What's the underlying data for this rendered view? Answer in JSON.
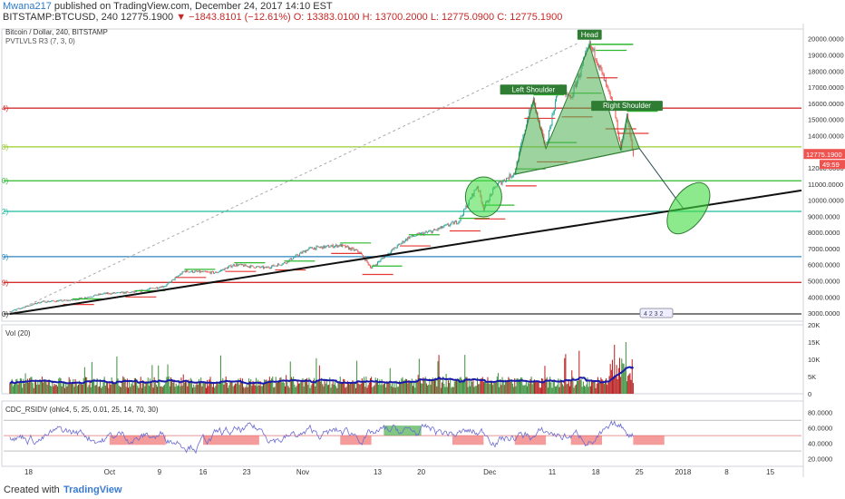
{
  "header": {
    "author": "Mwana217",
    "published": "published on TradingView.com, December 24, 2017 14:10 EST",
    "symbol": "BITSTAMP:BTCUSD, 240",
    "last": "12775.1900",
    "change": "−1843.8101 (−12.61%)",
    "ohlc": "O: 13383.0100  H: 13700.2000  L: 12775.0900  C: 12775.1900"
  },
  "main_pane": {
    "title": "Bitcoin / Dollar, 240, BITSTAMP",
    "indicator": "PVTLVLS R3 (7, 3, 0)",
    "price_label": "12775.1900",
    "countdown": "49:59",
    "y_ticks": [
      "20000.0000",
      "19000.0000",
      "18000.0000",
      "17000.0000",
      "16000.0000",
      "15000.0000",
      "14000.0000",
      "13000.0000",
      "12000.0000",
      "11000.0000",
      "10000.0000",
      "9000.0000",
      "8000.0000",
      "7000.0000",
      "6000.0000",
      "5000.0000",
      "4000.0000",
      "3000.0000"
    ],
    "left_edge_labels": [
      "4)",
      "8)",
      "0)",
      "2)",
      "9)",
      "9)",
      "0)"
    ],
    "annotations": [
      "Head",
      "Left Shoulder",
      "Right Shoulder"
    ],
    "badge": "4 2 3 2"
  },
  "volume_pane": {
    "title": "Vol (20)",
    "y_ticks": [
      "20K",
      "15K",
      "10K",
      "5K",
      "0"
    ]
  },
  "rsi_pane": {
    "title": "CDC_RSIDV (ohlc4, 5, 25, 0.01, 25, 14, 70, 30)",
    "y_ticks": [
      "80.0000",
      "60.0000",
      "40.0000",
      "20.0000"
    ]
  },
  "x_axis": {
    "ticks": [
      "18",
      "Oct",
      "9",
      "16",
      "23",
      "Nov",
      "13",
      "20",
      "Dec",
      "11",
      "18",
      "25",
      "2018",
      "8",
      "15"
    ]
  },
  "footer": {
    "created": "Created with",
    "brand": "TradingView"
  },
  "colors": {
    "up": "#26a69a",
    "down": "#ef5350",
    "hs_fill": "#4caf50",
    "ma": "#1a1aa8",
    "rsi": "#6a6ad0",
    "red_level": "#d32f2f",
    "yellowgreen_level": "#9acd32",
    "green_level": "#2eb82e",
    "teal_level": "#1abc9c",
    "blue_level": "#2e86c1"
  },
  "chart_data": {
    "type": "candlestick",
    "title": "Bitcoin / Dollar, 240, BITSTAMP",
    "ylim": [
      2500,
      20600
    ],
    "x_range": [
      "2017-09-14",
      "2018-01-20"
    ],
    "x_tick_labels": [
      "18",
      "Oct",
      "9",
      "16",
      "23",
      "Nov",
      "13",
      "20",
      "Dec",
      "11",
      "18",
      "25",
      "2018",
      "8",
      "15"
    ],
    "price_path": [
      [
        "2017-09-15",
        3100
      ],
      [
        "2017-09-20",
        3700
      ],
      [
        "2017-09-25",
        3800
      ],
      [
        "2017-09-30",
        4200
      ],
      [
        "2017-10-05",
        4300
      ],
      [
        "2017-10-10",
        4700
      ],
      [
        "2017-10-13",
        5600
      ],
      [
        "2017-10-18",
        5500
      ],
      [
        "2017-10-21",
        6000
      ],
      [
        "2017-10-26",
        5800
      ],
      [
        "2017-10-29",
        6100
      ],
      [
        "2017-11-02",
        7000
      ],
      [
        "2017-11-07",
        7200
      ],
      [
        "2017-11-10",
        6800
      ],
      [
        "2017-11-12",
        5800
      ],
      [
        "2017-11-15",
        6800
      ],
      [
        "2017-11-18",
        7700
      ],
      [
        "2017-11-22",
        8100
      ],
      [
        "2017-11-26",
        8700
      ],
      [
        "2017-11-29",
        10900
      ],
      [
        "2017-11-30",
        9500
      ],
      [
        "2017-12-02",
        10900
      ],
      [
        "2017-12-05",
        11700
      ],
      [
        "2017-12-07",
        15000
      ],
      [
        "2017-12-08",
        16200
      ],
      [
        "2017-12-09",
        14500
      ],
      [
        "2017-12-10",
        13300
      ],
      [
        "2017-12-12",
        17000
      ],
      [
        "2017-12-14",
        16300
      ],
      [
        "2017-12-17",
        19600
      ],
      [
        "2017-12-18",
        18900
      ],
      [
        "2017-12-20",
        16700
      ],
      [
        "2017-12-21",
        15500
      ],
      [
        "2017-12-22",
        13200
      ],
      [
        "2017-12-23",
        15200
      ],
      [
        "2017-12-24",
        12775
      ]
    ],
    "levels": [
      {
        "price": 15700,
        "color": "#d32f2f"
      },
      {
        "price": 13300,
        "color": "#9acd32"
      },
      {
        "price": 11200,
        "color": "#2eb82e"
      },
      {
        "price": 9300,
        "color": "#1abc9c"
      },
      {
        "price": 6500,
        "color": "#2e86c1"
      },
      {
        "price": 4900,
        "color": "#d32f2f"
      },
      {
        "price": 2950,
        "color": "#333333"
      }
    ],
    "head_and_shoulders": {
      "left_shoulder": {
        "date": "2017-12-08",
        "price": 16200
      },
      "head": {
        "date": "2017-12-17",
        "price": 19600
      },
      "right_shoulder": {
        "date": "2017-12-23",
        "price": 15200
      },
      "neckline": [
        {
          "date": "2017-12-10",
          "price": 13200
        },
        {
          "date": "2017-12-22",
          "price": 13100
        }
      ],
      "target": {
        "date": "2018-01-01",
        "price": 9500
      }
    },
    "trend_line": [
      {
        "date": "2017-09-15",
        "price": 2950
      },
      {
        "date": "2018-01-20",
        "price": 10600
      }
    ],
    "dashed_line": [
      {
        "date": "2017-09-15",
        "price": 2950
      },
      {
        "date": "2017-12-15",
        "price": 19700
      }
    ],
    "volume": {
      "ylim": [
        0,
        20000
      ],
      "ma_period": 20,
      "peak_value": 15000
    },
    "rsi": {
      "ylim": [
        10,
        95
      ],
      "upper": 70,
      "lower": 30,
      "mid": 50
    }
  }
}
